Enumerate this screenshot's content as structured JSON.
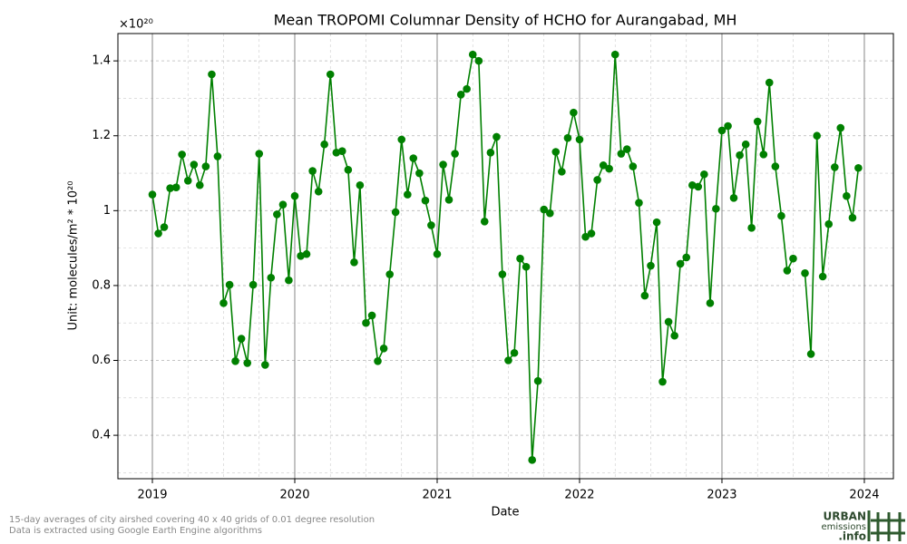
{
  "chart_data": {
    "type": "line",
    "title": "Mean TROPOMI Columnar Density of HCHO for Aurangabad, MH",
    "offset_label": "×10²⁰",
    "x_label": "Date",
    "y_label": "Unit: molecules/m² * 10²⁰",
    "color": "#008000",
    "x": [
      2019,
      2019.042,
      2019.083,
      2019.125,
      2019.167,
      2019.208,
      2019.25,
      2019.292,
      2019.333,
      2019.375,
      2019.417,
      2019.458,
      2019.5,
      2019.542,
      2019.583,
      2019.625,
      2019.667,
      2019.708,
      2019.75,
      2019.792,
      2019.833,
      2019.875,
      2019.917,
      2019.958,
      2020,
      2020.042,
      2020.083,
      2020.125,
      2020.167,
      2020.208,
      2020.25,
      2020.292,
      2020.333,
      2020.375,
      2020.417,
      2020.458,
      2020.5,
      2020.542,
      2020.583,
      2020.625,
      2020.667,
      2020.708,
      2020.75,
      2020.792,
      2020.833,
      2020.875,
      2020.917,
      2020.958,
      2021,
      2021.042,
      2021.083,
      2021.125,
      2021.167,
      2021.208,
      2021.25,
      2021.292,
      2021.333,
      2021.375,
      2021.417,
      2021.458,
      2021.5,
      2021.542,
      2021.583,
      2021.625,
      2021.667,
      2021.708,
      2021.75,
      2021.792,
      2021.833,
      2021.875,
      2021.917,
      2021.958,
      2022,
      2022.042,
      2022.083,
      2022.125,
      2022.167,
      2022.208,
      2022.25,
      2022.292,
      2022.333,
      2022.375,
      2022.417,
      2022.458,
      2022.5,
      2022.542,
      2022.583,
      2022.625,
      2022.667,
      2022.708,
      2022.75,
      2022.792,
      2022.833,
      2022.875,
      2022.917,
      2022.958,
      2023,
      2023.042,
      2023.083,
      2023.125,
      2023.167,
      2023.208,
      2023.25,
      2023.292,
      2023.333,
      2023.375,
      2023.417,
      2023.458,
      2023.5,
      2023.542,
      2023.583,
      2023.625,
      2023.667,
      2023.708,
      2023.75,
      2023.792,
      2023.833,
      2023.875,
      2023.917,
      2023.958
    ],
    "values": [
      1.043,
      0.939,
      0.956,
      1.06,
      1.062,
      1.15,
      1.08,
      1.123,
      1.068,
      1.118,
      1.364,
      1.145,
      0.753,
      0.802,
      0.598,
      0.658,
      0.593,
      0.802,
      1.152,
      0.588,
      0.821,
      0.99,
      1.016,
      0.814,
      1.039,
      0.879,
      0.884,
      1.106,
      1.051,
      1.177,
      1.364,
      1.155,
      1.159,
      1.109,
      0.862,
      1.068,
      0.7,
      0.72,
      0.598,
      0.632,
      0.83,
      0.996,
      1.19,
      1.043,
      1.14,
      1.1,
      1.027,
      0.961,
      0.884,
      1.123,
      1.029,
      1.152,
      1.31,
      1.325,
      1.417,
      1.4,
      0.971,
      1.155,
      1.197,
      0.83,
      0.6,
      0.62,
      0.872,
      0.85,
      0.334,
      0.545,
      1.003,
      0.993,
      1.157,
      1.104,
      1.194,
      1.262,
      1.19,
      0.93,
      0.939,
      1.082,
      1.121,
      1.112,
      1.417,
      1.152,
      1.164,
      1.118,
      1.021,
      0.773,
      0.853,
      0.969,
      0.543,
      0.703,
      0.666,
      0.858,
      0.875,
      1.068,
      1.064,
      1.097,
      0.753,
      1.005,
      1.214,
      1.226,
      1.034,
      1.148,
      1.177,
      0.954,
      1.238,
      1.15,
      1.342,
      1.118,
      0.986,
      0.84,
      0.872,
      null,
      0.833,
      0.617,
      1.2,
      0.824,
      0.964,
      1.116,
      1.221,
      1.039,
      0.981,
      1.114
    ],
    "xlim": [
      2018.758,
      2024.204
    ],
    "xticks": [
      2019,
      2020,
      2021,
      2022,
      2023,
      2024
    ],
    "ylim": [
      0.284,
      1.473
    ],
    "yticks": [
      0.4,
      0.6,
      0.8,
      1.0,
      1.2,
      1.4
    ],
    "grid": true
  },
  "footer": [
    "15-day averages of city airshed covering 40 x 40 grids of 0.01 degree resolution",
    "Data is extracted using Google Earth Engine algorithms"
  ],
  "logo": {
    "line1": "URBAN",
    "line2": "emissions",
    "line3": ".info"
  }
}
